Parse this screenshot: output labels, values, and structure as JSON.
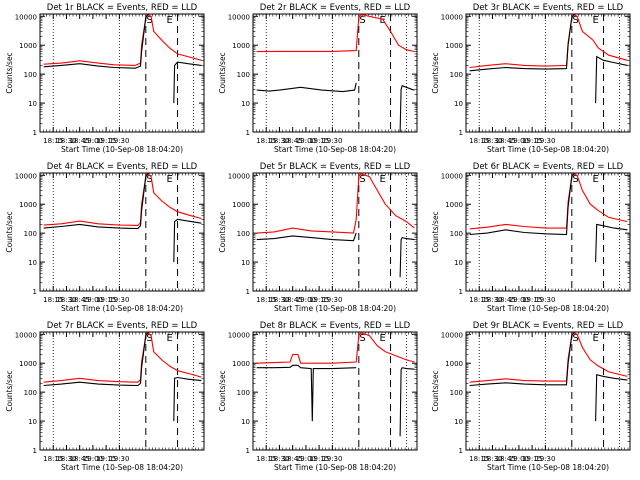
{
  "colors": {
    "events": "#000000",
    "lld": "#ff0000",
    "background": "#ffffff"
  },
  "chart_data": [
    {
      "title": "Det 1r BLACK = Events, RED = LLD",
      "xtick_labels": [
        "18:15",
        "18:30",
        "18:45",
        "19:00",
        "19:15",
        "19:30"
      ],
      "events": [
        [
          18.07,
          180
        ],
        [
          18.4,
          200
        ],
        [
          18.75,
          230
        ],
        [
          19.1,
          190
        ],
        [
          19.4,
          170
        ],
        [
          19.8,
          160
        ],
        [
          19.9,
          190
        ],
        [
          19.92,
          600
        ],
        [
          20.0,
          9000
        ],
        [
          20.05,
          12000
        ]
      ],
      "lld": [
        [
          18.07,
          220
        ],
        [
          18.4,
          240
        ],
        [
          18.75,
          290
        ],
        [
          19.1,
          240
        ],
        [
          19.4,
          210
        ],
        [
          19.8,
          200
        ],
        [
          19.9,
          240
        ],
        [
          19.92,
          1000
        ],
        [
          20.0,
          9000
        ],
        [
          20.05,
          12000
        ]
      ],
      "events_b": [
        [
          20.53,
          10
        ],
        [
          20.545,
          200
        ],
        [
          20.6,
          260
        ],
        [
          20.8,
          230
        ],
        [
          21.05,
          200
        ]
      ],
      "lld_b": [
        [
          20.0,
          12000
        ],
        [
          20.1,
          10000
        ],
        [
          20.15,
          3000
        ],
        [
          20.3,
          1500
        ],
        [
          20.45,
          800
        ],
        [
          20.6,
          500
        ],
        [
          20.85,
          380
        ],
        [
          21.05,
          300
        ]
      ],
      "S": "S",
      "E": "E",
      "s_x": 20.07,
      "e_x": 20.45
    },
    {
      "title": "Det 2r BLACK = Events, RED = LLD",
      "xtick_labels": [
        "18:15",
        "18:30",
        "18:45",
        "19:00",
        "19:15",
        "19:30"
      ],
      "events": [
        [
          18.07,
          28
        ],
        [
          18.3,
          26
        ],
        [
          18.5,
          28
        ],
        [
          18.9,
          35
        ],
        [
          19.3,
          28
        ],
        [
          19.7,
          25
        ],
        [
          19.92,
          28
        ],
        [
          19.95,
          50
        ]
      ],
      "lld": [
        [
          18.07,
          600
        ],
        [
          18.5,
          610
        ],
        [
          19.0,
          610
        ],
        [
          19.5,
          610
        ],
        [
          19.95,
          650
        ],
        [
          20.0,
          9000
        ],
        [
          20.05,
          12000
        ]
      ],
      "events_b": [
        [
          20.78,
          1
        ],
        [
          20.8,
          30
        ],
        [
          20.82,
          40
        ],
        [
          20.9,
          35
        ],
        [
          21.0,
          30
        ],
        [
          21.05,
          28
        ]
      ],
      "lld_b": [
        [
          20.0,
          12000
        ],
        [
          20.3,
          9000
        ],
        [
          20.45,
          8000
        ],
        [
          20.6,
          3000
        ],
        [
          20.75,
          1000
        ],
        [
          20.9,
          700
        ],
        [
          21.05,
          600
        ]
      ],
      "S": "S",
      "E": "E",
      "s_x": 20.07,
      "e_x": 20.45
    },
    {
      "title": "Det 3r BLACK = Events, RED = LLD",
      "xtick_labels": [
        "18:15",
        "18:30",
        "18:45",
        "19:00",
        "19:15",
        "19:30"
      ],
      "events": [
        [
          18.07,
          130
        ],
        [
          18.4,
          150
        ],
        [
          18.75,
          170
        ],
        [
          19.1,
          155
        ],
        [
          19.5,
          150
        ],
        [
          19.9,
          155
        ],
        [
          19.93,
          1000
        ],
        [
          20.0,
          9000
        ],
        [
          20.05,
          12000
        ]
      ],
      "lld": [
        [
          18.07,
          170
        ],
        [
          18.4,
          200
        ],
        [
          18.75,
          230
        ],
        [
          19.1,
          200
        ],
        [
          19.5,
          190
        ],
        [
          19.9,
          200
        ],
        [
          19.93,
          1200
        ],
        [
          20.0,
          9000
        ],
        [
          20.05,
          12000
        ]
      ],
      "events_b": [
        [
          20.45,
          10
        ],
        [
          20.47,
          400
        ],
        [
          20.6,
          300
        ],
        [
          20.8,
          250
        ],
        [
          21.05,
          200
        ]
      ],
      "lld_b": [
        [
          20.0,
          12000
        ],
        [
          20.1,
          10000
        ],
        [
          20.2,
          3000
        ],
        [
          20.4,
          1500
        ],
        [
          20.5,
          800
        ],
        [
          20.7,
          450
        ],
        [
          21.05,
          300
        ]
      ],
      "S": "S",
      "E": "E",
      "s_x": 20.07,
      "e_x": 20.45
    },
    {
      "title": "Det 4r BLACK = Events, RED = LLD",
      "xtick_labels": [
        "18:15",
        "18:30",
        "18:45",
        "19:00",
        "19:15",
        "19:30"
      ],
      "events": [
        [
          18.07,
          150
        ],
        [
          18.4,
          170
        ],
        [
          18.75,
          200
        ],
        [
          19.1,
          165
        ],
        [
          19.5,
          150
        ],
        [
          19.85,
          145
        ],
        [
          19.9,
          180
        ],
        [
          19.92,
          600
        ],
        [
          20.0,
          9000
        ],
        [
          20.05,
          12000
        ]
      ],
      "lld": [
        [
          18.07,
          190
        ],
        [
          18.4,
          210
        ],
        [
          18.75,
          260
        ],
        [
          19.1,
          210
        ],
        [
          19.5,
          190
        ],
        [
          19.85,
          185
        ],
        [
          19.9,
          230
        ],
        [
          19.92,
          1000
        ],
        [
          20.0,
          9000
        ],
        [
          20.05,
          12000
        ]
      ],
      "events_b": [
        [
          20.53,
          10
        ],
        [
          20.545,
          250
        ],
        [
          20.6,
          300
        ],
        [
          20.8,
          260
        ],
        [
          21.05,
          220
        ]
      ],
      "lld_b": [
        [
          20.0,
          12000
        ],
        [
          20.1,
          9000
        ],
        [
          20.15,
          2500
        ],
        [
          20.3,
          1300
        ],
        [
          20.45,
          800
        ],
        [
          20.6,
          550
        ],
        [
          20.85,
          400
        ],
        [
          21.05,
          320
        ]
      ],
      "S": "S",
      "E": "E",
      "s_x": 20.07,
      "e_x": 20.45
    },
    {
      "title": "Det 5r BLACK = Events, RED = LLD",
      "xtick_labels": [
        "18:15",
        "18:30",
        "18:45",
        "19:00",
        "19:15",
        "19:30"
      ],
      "events": [
        [
          18.07,
          60
        ],
        [
          18.4,
          65
        ],
        [
          18.75,
          80
        ],
        [
          19.1,
          70
        ],
        [
          19.5,
          60
        ],
        [
          19.9,
          55
        ],
        [
          19.95,
          100
        ]
      ],
      "lld": [
        [
          18.07,
          100
        ],
        [
          18.4,
          110
        ],
        [
          18.75,
          150
        ],
        [
          19.1,
          120
        ],
        [
          19.5,
          110
        ],
        [
          19.9,
          100
        ],
        [
          19.95,
          300
        ],
        [
          20.0,
          9000
        ],
        [
          20.05,
          12000
        ]
      ],
      "events_b": [
        [
          20.78,
          3
        ],
        [
          20.8,
          60
        ],
        [
          20.82,
          70
        ],
        [
          20.9,
          65
        ],
        [
          21.05,
          60
        ]
      ],
      "lld_b": [
        [
          20.0,
          12000
        ],
        [
          20.2,
          9000
        ],
        [
          20.35,
          3000
        ],
        [
          20.5,
          1000
        ],
        [
          20.7,
          400
        ],
        [
          20.9,
          250
        ],
        [
          21.05,
          150
        ]
      ],
      "S": "S",
      "E": "E",
      "s_x": 20.07,
      "e_x": 20.45
    },
    {
      "title": "Det 6r BLACK = Events, RED = LLD",
      "xtick_labels": [
        "18:15",
        "18:30",
        "18:45",
        "19:00",
        "19:15",
        "19:30"
      ],
      "events": [
        [
          18.07,
          90
        ],
        [
          18.4,
          100
        ],
        [
          18.75,
          130
        ],
        [
          19.1,
          105
        ],
        [
          19.5,
          95
        ],
        [
          19.9,
          90
        ],
        [
          19.93,
          800
        ],
        [
          20.0,
          9000
        ],
        [
          20.05,
          12000
        ]
      ],
      "lld": [
        [
          18.07,
          140
        ],
        [
          18.4,
          160
        ],
        [
          18.75,
          200
        ],
        [
          19.1,
          170
        ],
        [
          19.5,
          150
        ],
        [
          19.9,
          150
        ],
        [
          19.93,
          1200
        ],
        [
          20.0,
          9000
        ],
        [
          20.05,
          12000
        ]
      ],
      "events_b": [
        [
          20.45,
          10
        ],
        [
          20.47,
          200
        ],
        [
          20.6,
          180
        ],
        [
          20.8,
          150
        ],
        [
          21.05,
          130
        ]
      ],
      "lld_b": [
        [
          20.0,
          12000
        ],
        [
          20.1,
          10000
        ],
        [
          20.2,
          3000
        ],
        [
          20.35,
          1000
        ],
        [
          20.5,
          600
        ],
        [
          20.7,
          350
        ],
        [
          21.05,
          250
        ]
      ],
      "S": "S",
      "E": "E",
      "s_x": 20.07,
      "e_x": 20.45
    },
    {
      "title": "Det 7r BLACK = Events, RED = LLD",
      "xtick_labels": [
        "18:15",
        "18:30",
        "18:45",
        "19:00",
        "19:15",
        "19:30"
      ],
      "events": [
        [
          18.07,
          170
        ],
        [
          18.4,
          190
        ],
        [
          18.75,
          220
        ],
        [
          19.1,
          190
        ],
        [
          19.5,
          175
        ],
        [
          19.85,
          170
        ],
        [
          19.9,
          200
        ],
        [
          19.92,
          700
        ],
        [
          20.0,
          9000
        ],
        [
          20.05,
          12000
        ]
      ],
      "lld": [
        [
          18.07,
          220
        ],
        [
          18.4,
          250
        ],
        [
          18.75,
          300
        ],
        [
          19.1,
          250
        ],
        [
          19.5,
          230
        ],
        [
          19.85,
          220
        ],
        [
          19.9,
          270
        ],
        [
          19.92,
          1100
        ],
        [
          20.0,
          9000
        ],
        [
          20.05,
          12000
        ]
      ],
      "events_b": [
        [
          20.53,
          10
        ],
        [
          20.545,
          300
        ],
        [
          20.6,
          320
        ],
        [
          20.8,
          280
        ],
        [
          21.05,
          250
        ]
      ],
      "lld_b": [
        [
          20.0,
          12000
        ],
        [
          20.1,
          9000
        ],
        [
          20.15,
          2500
        ],
        [
          20.3,
          1300
        ],
        [
          20.45,
          800
        ],
        [
          20.6,
          550
        ],
        [
          20.85,
          420
        ],
        [
          21.05,
          330
        ]
      ],
      "S": "S",
      "E": "E",
      "s_x": 20.07,
      "e_x": 20.45
    },
    {
      "title": "Det 8r BLACK = Events, RED = LLD",
      "xtick_labels": [
        "18:15",
        "18:30",
        "18:45",
        "19:00",
        "19:15",
        "19:30"
      ],
      "events": [
        [
          18.07,
          700
        ],
        [
          18.4,
          700
        ],
        [
          18.7,
          720
        ],
        [
          18.75,
          850
        ],
        [
          18.85,
          850
        ],
        [
          18.9,
          700
        ],
        [
          19.1,
          650
        ],
        [
          19.12,
          10
        ],
        [
          19.14,
          650
        ],
        [
          19.5,
          650
        ],
        [
          19.95,
          700
        ]
      ],
      "lld": [
        [
          18.07,
          1000
        ],
        [
          18.4,
          1050
        ],
        [
          18.7,
          1100
        ],
        [
          18.75,
          2000
        ],
        [
          18.85,
          2000
        ],
        [
          18.9,
          1000
        ],
        [
          19.5,
          1000
        ],
        [
          19.95,
          1100
        ],
        [
          20.0,
          9000
        ],
        [
          20.05,
          12000
        ]
      ],
      "events_b": [
        [
          20.78,
          3
        ],
        [
          20.8,
          600
        ],
        [
          20.82,
          700
        ],
        [
          20.9,
          650
        ],
        [
          21.05,
          620
        ]
      ],
      "lld_b": [
        [
          20.0,
          12000
        ],
        [
          20.2,
          9000
        ],
        [
          20.35,
          4000
        ],
        [
          20.5,
          2500
        ],
        [
          20.7,
          1800
        ],
        [
          20.9,
          1300
        ],
        [
          21.05,
          1100
        ]
      ],
      "S": "S",
      "E": "E",
      "s_x": 20.07,
      "e_x": 20.45
    },
    {
      "title": "Det 9r BLACK = Events, RED = LLD",
      "xtick_labels": [
        "18:15",
        "18:30",
        "18:45",
        "19:00",
        "19:15",
        "19:30"
      ],
      "events": [
        [
          18.07,
          170
        ],
        [
          18.4,
          190
        ],
        [
          18.75,
          210
        ],
        [
          19.1,
          190
        ],
        [
          19.5,
          180
        ],
        [
          19.9,
          180
        ],
        [
          19.93,
          1000
        ],
        [
          20.0,
          9000
        ],
        [
          20.05,
          12000
        ]
      ],
      "lld": [
        [
          18.07,
          220
        ],
        [
          18.4,
          250
        ],
        [
          18.75,
          290
        ],
        [
          19.1,
          250
        ],
        [
          19.5,
          240
        ],
        [
          19.9,
          240
        ],
        [
          19.93,
          1400
        ],
        [
          20.0,
          9000
        ],
        [
          20.05,
          12000
        ]
      ],
      "events_b": [
        [
          20.45,
          10
        ],
        [
          20.47,
          400
        ],
        [
          20.6,
          350
        ],
        [
          20.8,
          300
        ],
        [
          21.05,
          260
        ]
      ],
      "lld_b": [
        [
          20.0,
          12000
        ],
        [
          20.1,
          10000
        ],
        [
          20.2,
          3500
        ],
        [
          20.35,
          1300
        ],
        [
          20.5,
          800
        ],
        [
          20.7,
          500
        ],
        [
          21.05,
          350
        ]
      ],
      "S": "S",
      "E": "E",
      "s_x": 20.07,
      "e_x": 20.45
    }
  ],
  "shared": {
    "xlabel": "Start Time (10-Sep-08 18:04:20)",
    "ylabel": "Counts/sec",
    "ytick_labels": [
      "1",
      "10",
      "100",
      "1000",
      "10000"
    ],
    "ylim": [
      1,
      12000
    ],
    "xlim": [
      18.0,
      21.1
    ],
    "xticks": [
      18.25,
      18.5,
      18.75,
      19.0,
      19.25,
      19.5
    ],
    "y_scale": "log",
    "dotted_vlines": [
      18.25,
      19.5,
      20.9
    ],
    "dashed_vlines": [
      20.0,
      20.6
    ]
  }
}
